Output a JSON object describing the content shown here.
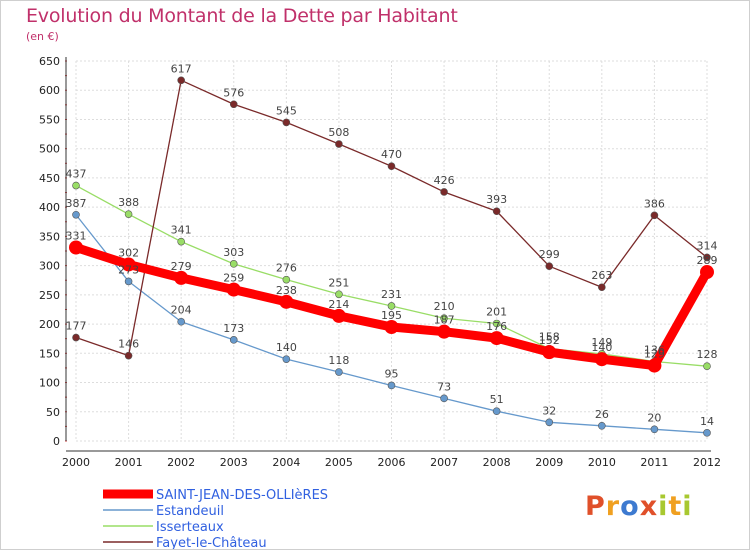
{
  "title": "Evolution du Montant de la Dette par Habitant",
  "subtitle": "(en €)",
  "logo": {
    "text": "Proxiti",
    "letters": [
      {
        "ch": "P",
        "color": "#e0502a"
      },
      {
        "ch": "r",
        "color": "#f0a020"
      },
      {
        "ch": "o",
        "color": "#3d7ad0"
      },
      {
        "ch": "x",
        "color": "#e0502a"
      },
      {
        "ch": "i",
        "color": "#a8c830"
      },
      {
        "ch": "t",
        "color": "#f0a020"
      },
      {
        "ch": "i",
        "color": "#a8c830"
      }
    ]
  },
  "chart_data": {
    "type": "line",
    "title": "Evolution du Montant de la Dette par Habitant",
    "subtitle": "(en €)",
    "x": [
      "2000",
      "2001",
      "2002",
      "2003",
      "2004",
      "2005",
      "2006",
      "2007",
      "2008",
      "2009",
      "2010",
      "2011",
      "2012"
    ],
    "ylim": [
      0,
      650
    ],
    "yticks": [
      0,
      50,
      100,
      150,
      200,
      250,
      300,
      350,
      400,
      450,
      500,
      550,
      600,
      650
    ],
    "grid": true,
    "legend_position": "bottom-left",
    "series": [
      {
        "name": "SAINT-JEAN-DES-OLLIèRES",
        "color": "#ff0000",
        "width": 9,
        "marker_r": 7,
        "values": [
          331,
          302,
          279,
          259,
          238,
          214,
          195,
          187,
          176,
          152,
          140,
          129,
          289
        ]
      },
      {
        "name": "Estandeuil",
        "color": "#6699cc",
        "width": 1.3,
        "marker_r": 3.5,
        "values": [
          387,
          273,
          204,
          173,
          140,
          118,
          95,
          73,
          51,
          32,
          26,
          20,
          14
        ]
      },
      {
        "name": "Isserteaux",
        "color": "#99dd66",
        "width": 1.3,
        "marker_r": 3.5,
        "values": [
          437,
          388,
          341,
          303,
          276,
          251,
          231,
          210,
          201,
          158,
          149,
          136,
          128
        ]
      },
      {
        "name": "Fayet-le-Château",
        "color": "#7a2a2a",
        "width": 1.3,
        "marker_r": 3.5,
        "values": [
          177,
          146,
          617,
          576,
          545,
          508,
          470,
          426,
          393,
          299,
          263,
          386,
          314
        ]
      }
    ]
  }
}
